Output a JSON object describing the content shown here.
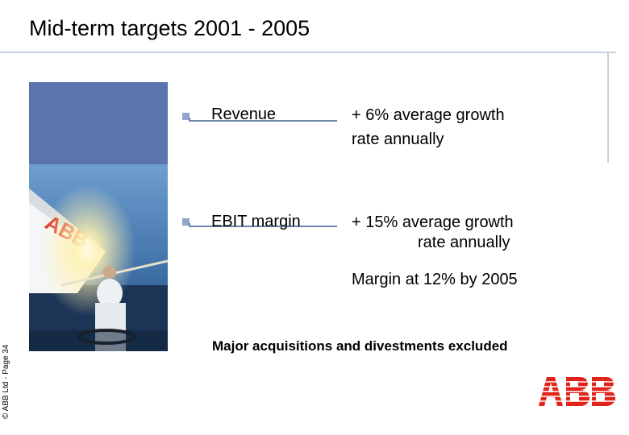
{
  "slide": {
    "title": "Mid-term targets 2001 - 2005",
    "items": [
      {
        "label": "Revenue",
        "value_line1": "+   6%  average growth",
        "value_line2": "rate annually"
      },
      {
        "label": "EBIT margin",
        "value_line1": "+ 15%  average growth",
        "value_line2": "rate annually"
      }
    ],
    "margin_note": "Margin at 12% by 2005",
    "footnote": "Major acquisitions and divestments excluded",
    "copyright": "© ABB Ltd - Page 34",
    "logo_text": "ABB"
  },
  "colors": {
    "accent_block": "#5a74ae",
    "bullet": "#8fa6c9",
    "rule": "#c7d3de",
    "logo_red": "#e2231a"
  }
}
